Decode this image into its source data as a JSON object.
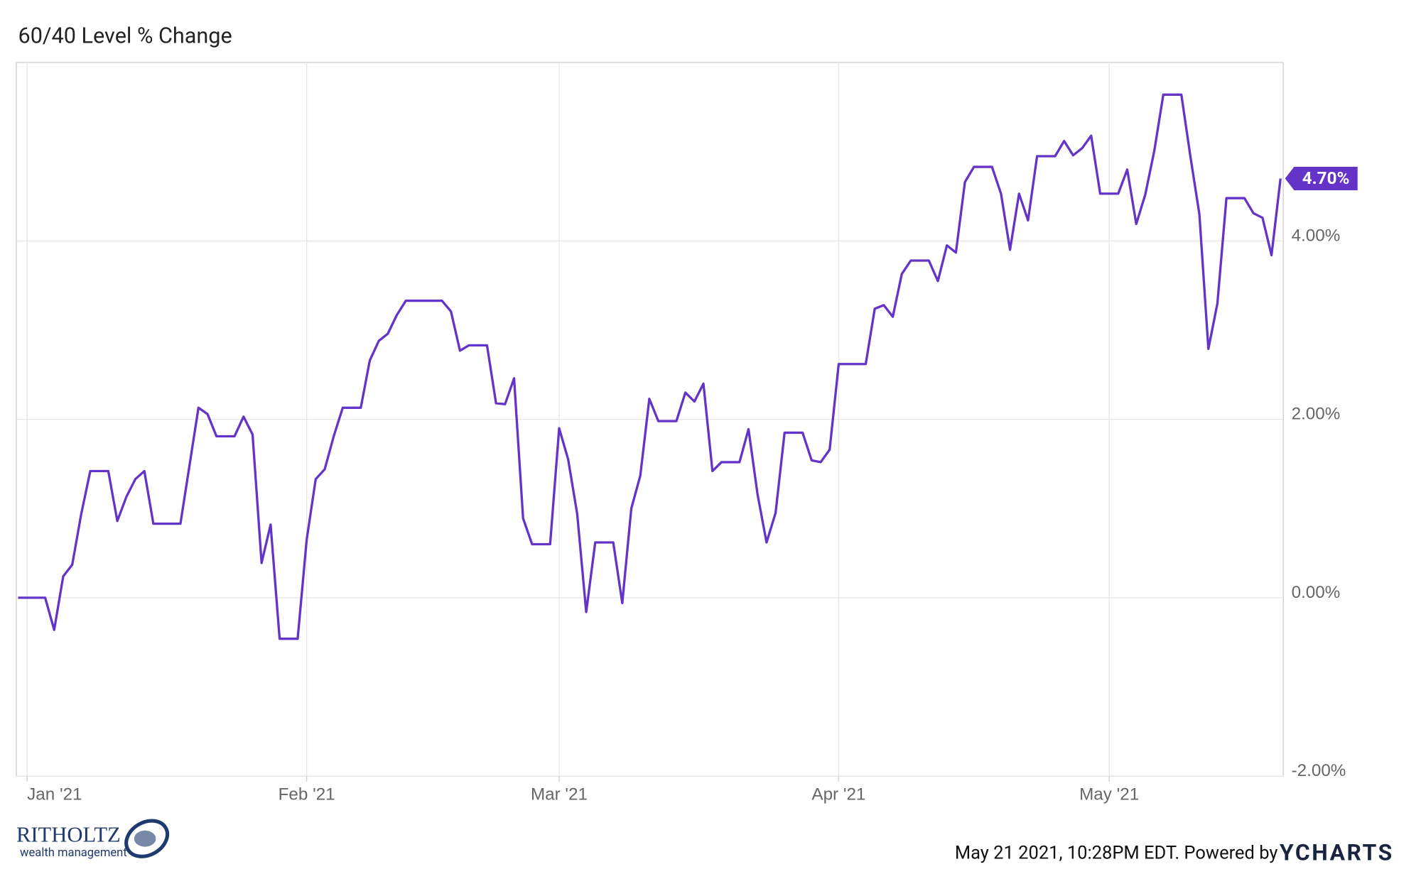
{
  "chart_data": {
    "type": "line",
    "title": "60/40 Level % Change",
    "categories": [
      null,
      "Jan '21",
      null,
      null,
      null,
      null,
      null,
      null,
      null,
      null,
      null,
      null,
      null,
      null,
      null,
      null,
      null,
      null,
      null,
      null,
      null,
      null,
      null,
      null,
      null,
      null,
      null,
      null,
      null,
      null,
      null,
      null,
      "Feb '21",
      null,
      null,
      null,
      null,
      null,
      null,
      null,
      null,
      null,
      null,
      null,
      null,
      null,
      null,
      null,
      null,
      null,
      null,
      null,
      null,
      null,
      null,
      null,
      null,
      null,
      null,
      null,
      "Mar '21",
      null,
      null,
      null,
      null,
      null,
      null,
      null,
      null,
      null,
      null,
      null,
      null,
      null,
      null,
      null,
      null,
      null,
      null,
      null,
      null,
      null,
      null,
      null,
      null,
      null,
      null,
      null,
      null,
      null,
      null,
      "Apr '21",
      null,
      null,
      null,
      null,
      null,
      null,
      null,
      null,
      null,
      null,
      null,
      null,
      null,
      null,
      null,
      null,
      null,
      null,
      null,
      null,
      null,
      null,
      null,
      null,
      null,
      null,
      null,
      null,
      null,
      "May '21",
      null,
      null,
      null,
      null,
      null,
      null,
      null,
      null,
      null,
      null,
      null,
      null,
      null,
      null,
      null,
      null,
      null,
      null,
      null
    ],
    "series": [
      {
        "name": "60/40 Level % Change",
        "color": "#6434c8",
        "values": [
          0,
          0,
          0,
          0,
          -0.36,
          0.24,
          0.37,
          0.94,
          1.42,
          1.42,
          1.42,
          0.86,
          1.13,
          1.33,
          1.42,
          0.83,
          0.83,
          0.83,
          0.83,
          1.48,
          2.13,
          2.06,
          1.81,
          1.81,
          1.81,
          2.03,
          1.83,
          0.39,
          0.82,
          -0.46,
          -0.46,
          -0.46,
          0.65,
          1.33,
          1.44,
          1.81,
          2.13,
          2.13,
          2.13,
          2.66,
          2.88,
          2.96,
          3.17,
          3.33,
          3.33,
          3.33,
          3.33,
          3.33,
          3.21,
          2.77,
          2.83,
          2.83,
          2.83,
          2.18,
          2.17,
          2.46,
          0.89,
          0.6,
          0.6,
          0.6,
          1.9,
          1.55,
          0.94,
          -0.16,
          0.62,
          0.62,
          0.62,
          -0.06,
          1.0,
          1.37,
          2.23,
          1.98,
          1.98,
          1.98,
          2.3,
          2.2,
          2.4,
          1.42,
          1.52,
          1.52,
          1.52,
          1.89,
          1.16,
          0.62,
          0.95,
          1.85,
          1.85,
          1.85,
          1.54,
          1.52,
          1.66,
          2.62,
          2.62,
          2.62,
          2.62,
          3.24,
          3.28,
          3.15,
          3.63,
          3.78,
          3.78,
          3.78,
          3.55,
          3.95,
          3.87,
          4.66,
          4.83,
          4.83,
          4.83,
          4.53,
          3.9,
          4.53,
          4.23,
          4.95,
          4.95,
          4.95,
          5.12,
          4.96,
          5.04,
          5.18,
          4.53,
          4.53,
          4.53,
          4.8,
          4.19,
          4.52,
          5.01,
          5.64,
          5.64,
          5.64,
          4.95,
          4.3,
          2.79,
          3.3,
          4.48,
          4.48,
          4.48,
          4.31,
          4.26,
          3.84,
          4.7
        ],
        "value_labels": [
          null,
          null,
          null,
          null,
          null,
          null,
          null,
          null,
          null,
          null,
          null,
          null,
          null,
          null,
          null,
          null,
          null,
          null,
          null,
          null,
          null,
          null,
          null,
          null,
          null,
          null,
          null,
          null,
          null,
          null,
          null,
          null,
          null,
          null,
          null,
          null,
          null,
          null,
          null,
          null,
          null,
          null,
          null,
          null,
          null,
          null,
          null,
          null,
          null,
          null,
          null,
          null,
          null,
          null,
          null,
          null,
          null,
          null,
          null,
          null,
          null,
          null,
          null,
          null,
          null,
          null,
          null,
          null,
          null,
          null,
          null,
          null,
          null,
          null,
          null,
          null,
          null,
          null,
          null,
          null,
          null,
          null,
          null,
          null,
          null,
          null,
          null,
          null,
          null,
          null,
          null,
          null,
          null,
          null,
          null,
          null,
          null,
          null,
          null,
          null,
          null,
          null,
          null,
          null,
          null,
          null,
          null,
          null,
          null,
          null,
          null,
          null,
          null,
          null,
          null,
          null,
          null,
          null,
          null,
          null,
          null,
          null,
          null,
          null,
          null,
          null,
          null,
          null,
          null,
          null,
          null,
          null,
          null,
          null,
          null,
          null,
          null,
          null,
          null,
          null,
          "4.70%"
        ]
      }
    ],
    "ylim": [
      -2,
      6
    ],
    "yticks": [
      {
        "value": -2,
        "label": "-2.00%"
      },
      {
        "value": 0,
        "label": "0.00%"
      },
      {
        "value": 2,
        "label": "2.00%"
      },
      {
        "value": 4,
        "label": "4.00%"
      }
    ],
    "grid": true
  },
  "branding": {
    "company": "RITHOLTZ",
    "tagline": "wealth management"
  },
  "footer": {
    "timestamp": "May 21 2021, 10:28PM EDT. Powered by",
    "provider": "YCHARTS"
  }
}
